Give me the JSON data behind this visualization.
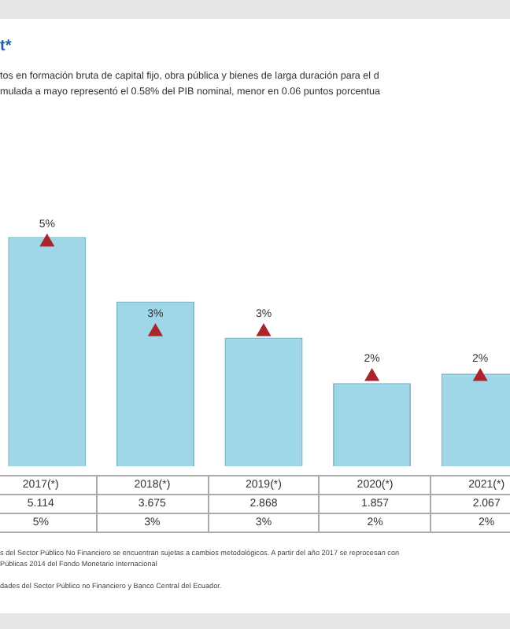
{
  "chart_data": {
    "type": "bar",
    "title": "t*",
    "subtitle": "tos en formación bruta de capital fijo, obra pública y bienes de larga duración para el d\nmulada a mayo representó el 0.58% del PIB nominal, menor en 0.06 puntos porcentua",
    "annotations": [
      "s del Sector Público No Financiero se encuentran sujetas a cambios metodológicos. A partir del año 2017 se reprocesan con\nPúblicas 2014 del Fondo Monetario Internacional",
      "dades del Sector Público no Financiero y Banco Central del Ecuador."
    ],
    "categories": [
      "2017(*)",
      "2018(*)",
      "2019(*)",
      "2020(*)",
      "2021(*)"
    ],
    "series": [
      {
        "color": "#9fd6e8",
        "values": [
          5.114,
          3.675,
          2.868,
          1.857,
          2.067
        ]
      },
      {
        "type": "scatter",
        "marker": "triangle",
        "color": "#a8262c",
        "values": [
          5,
          3,
          3,
          2,
          2
        ],
        "value_labels": [
          "5%",
          "3%",
          "3%",
          "2%",
          "2%"
        ]
      }
    ],
    "tick_labels": false,
    "legend": false,
    "data_labels": true
  }
}
